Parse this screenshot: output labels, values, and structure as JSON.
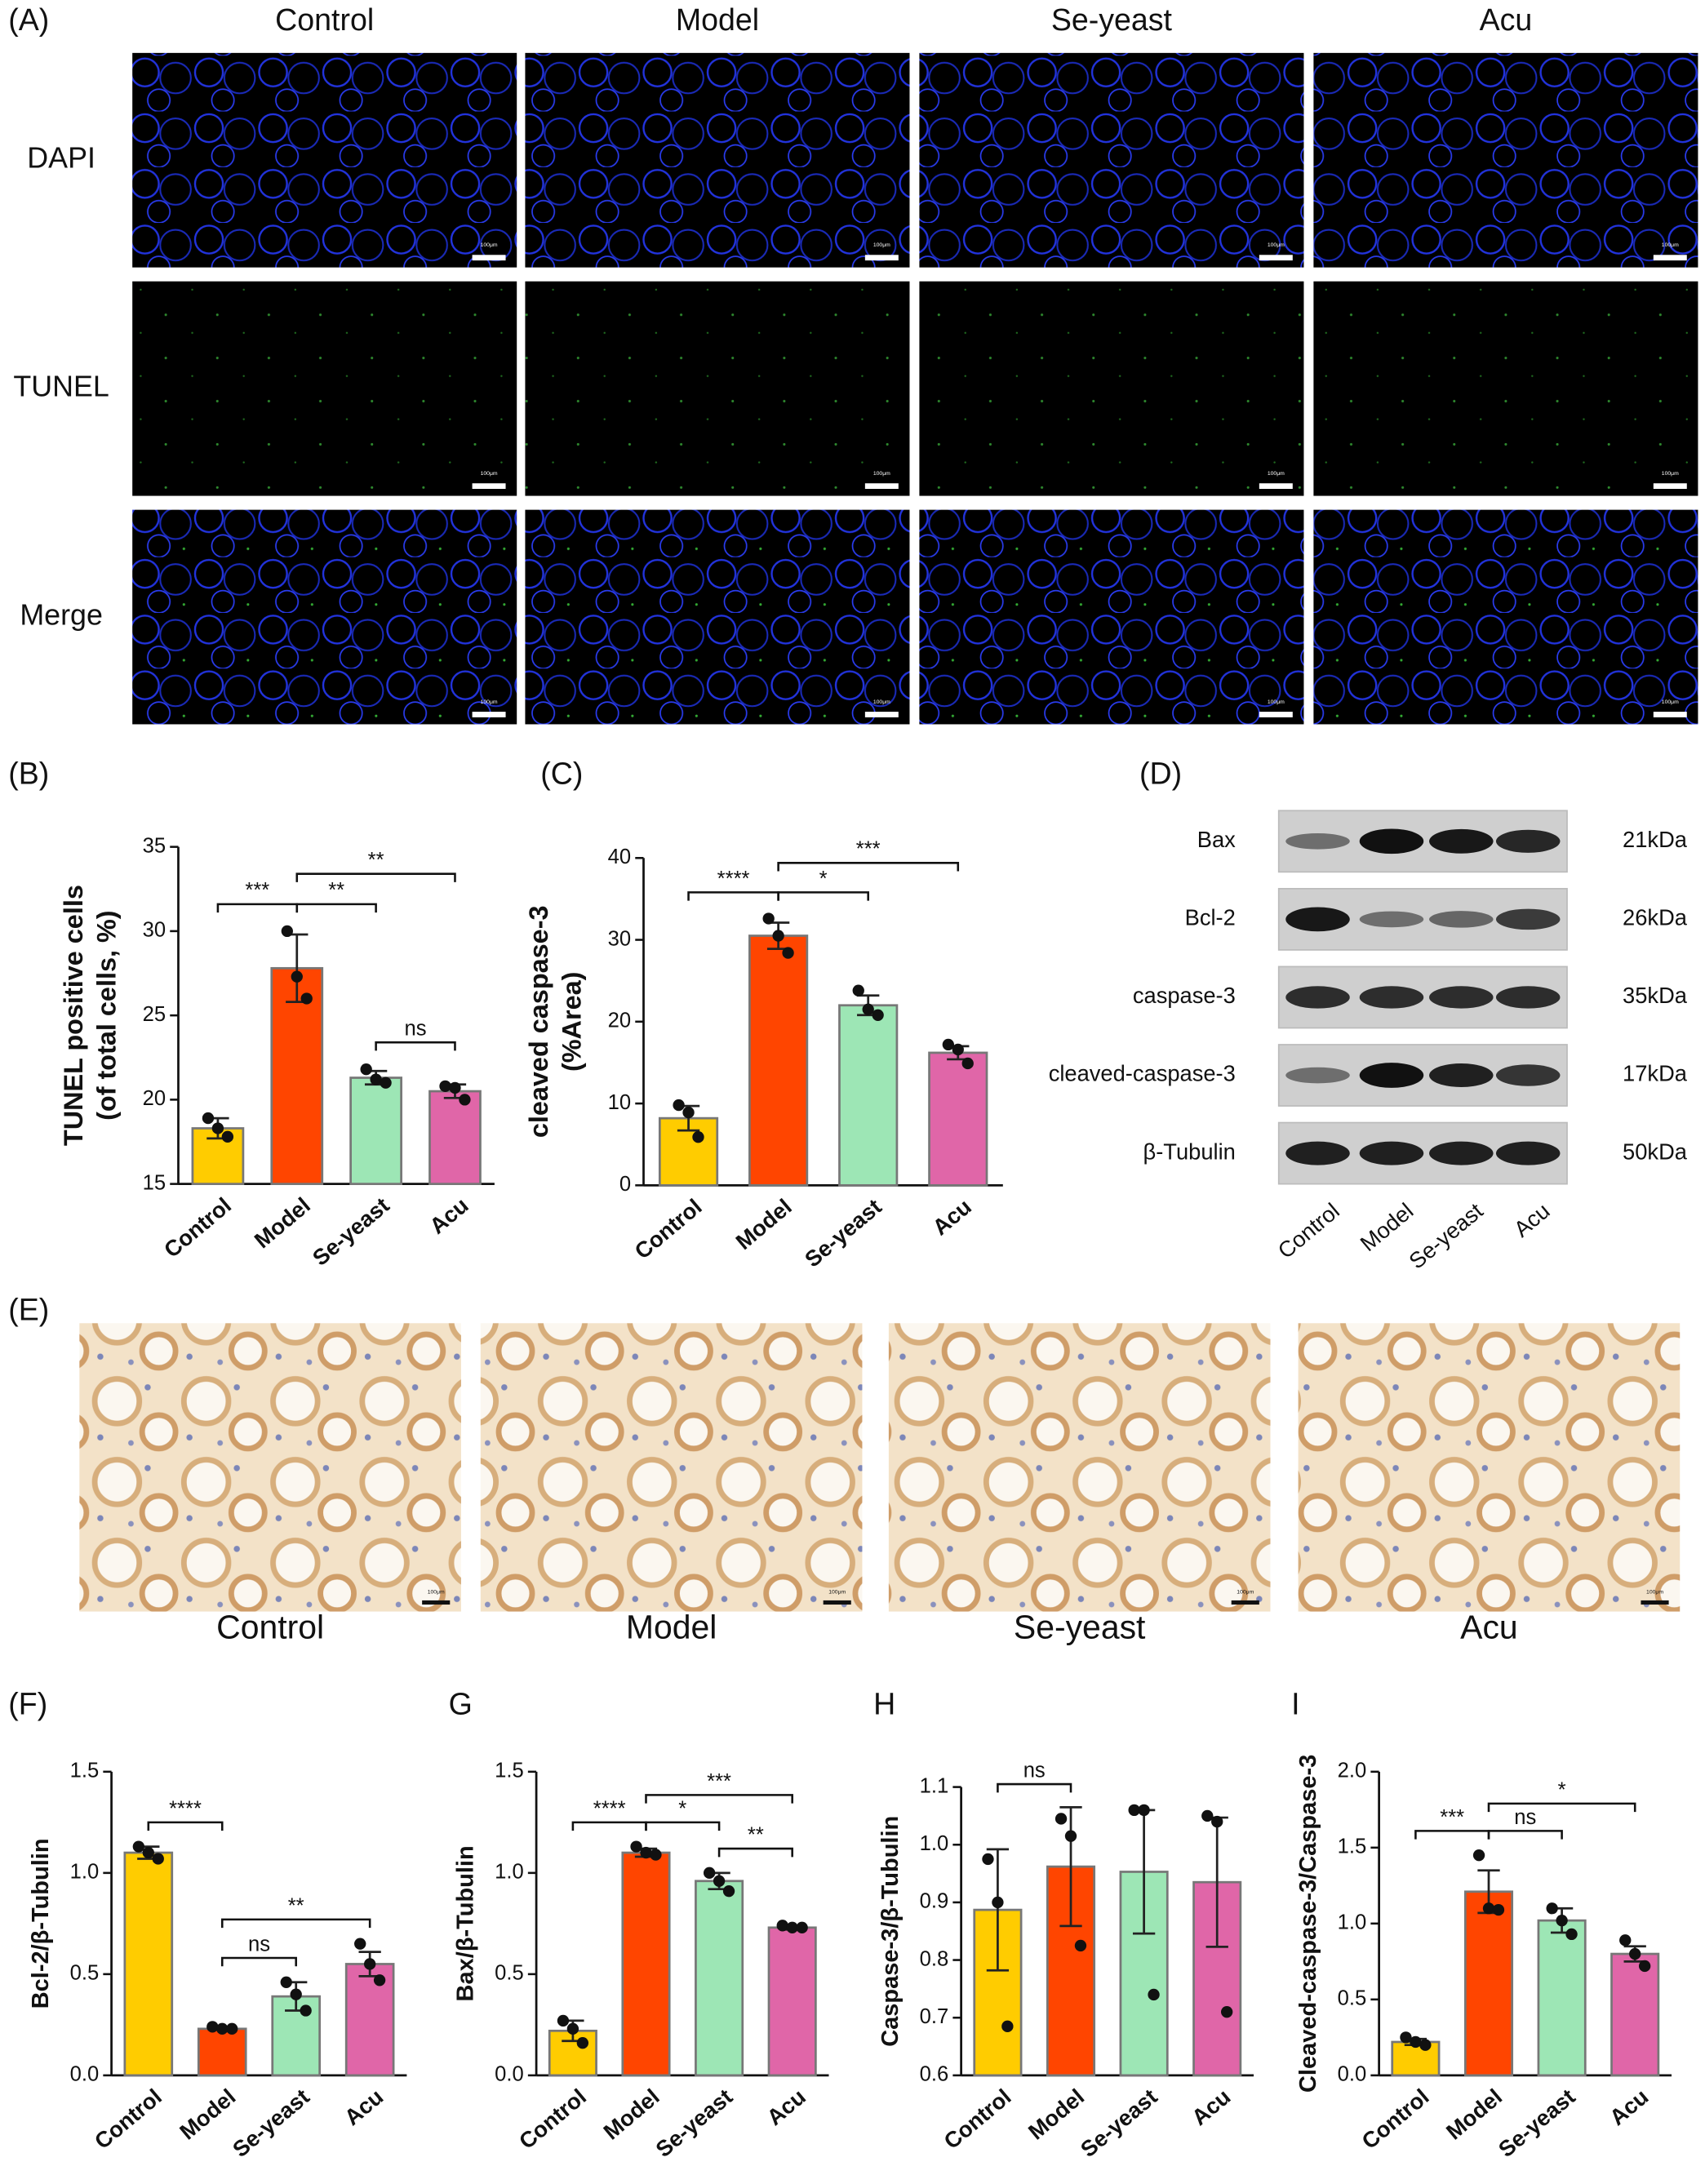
{
  "panel_a": {
    "label": "(A)",
    "columns": [
      "Control",
      "Model",
      "Se-yeast",
      "Acu"
    ],
    "rows": [
      "DAPI",
      "TUNEL",
      "Merge"
    ],
    "scale_bar": "100μm"
  },
  "panel_d": {
    "label": "(D)",
    "bands": [
      {
        "name": "Bax",
        "size": "21kDa"
      },
      {
        "name": "Bcl-2",
        "size": "26kDa"
      },
      {
        "name": "caspase-3",
        "size": "35kDa"
      },
      {
        "name": "cleaved-caspase-3",
        "size": "17kDa"
      },
      {
        "name": "β-Tubulin",
        "size": "50kDa"
      }
    ],
    "lanes": [
      "Control",
      "Model",
      "Se-yeast",
      "Acu"
    ]
  },
  "panel_e": {
    "label": "(E)",
    "columns": [
      "Control",
      "Model",
      "Se-yeast",
      "Acu"
    ],
    "scale_bar": "100μm"
  },
  "chart_data": [
    {
      "type": "bar",
      "title": "(B)",
      "ylabel": [
        "TUNEL positive cells",
        "(of total cells, %)"
      ],
      "categories": [
        "Control",
        "Model",
        "Se-yeast",
        "Acu"
      ],
      "colors": [
        "#ffcc00",
        "#ff4500",
        "#9de6b5",
        "#e066a8"
      ],
      "values": [
        18.3,
        27.8,
        21.3,
        20.5
      ],
      "errors": [
        0.6,
        2.0,
        0.4,
        0.4
      ],
      "points": [
        [
          18.9,
          18.3,
          17.8
        ],
        [
          30.0,
          27.3,
          26.0
        ],
        [
          21.8,
          21.2,
          21.0
        ],
        [
          20.8,
          20.7,
          20.0
        ]
      ],
      "ylim": [
        15,
        35
      ],
      "yticks": [
        15,
        20,
        25,
        30,
        35
      ],
      "comparisons": [
        {
          "from": 0,
          "to": 1,
          "label": "***"
        },
        {
          "from": 1,
          "to": 2,
          "label": "**"
        },
        {
          "from": 2,
          "to": 3,
          "label": "ns"
        },
        {
          "from": 1,
          "to": 3,
          "label": "**"
        }
      ]
    },
    {
      "type": "bar",
      "title": "(C)",
      "ylabel": [
        "cleaved caspase-3",
        "(%Area)"
      ],
      "categories": [
        "Control",
        "Model",
        "Se-yeast",
        "Acu"
      ],
      "colors": [
        "#ffcc00",
        "#ff4500",
        "#9de6b5",
        "#e066a8"
      ],
      "values": [
        8.2,
        30.5,
        22.0,
        16.2
      ],
      "errors": [
        1.5,
        1.6,
        1.2,
        0.8
      ],
      "points": [
        [
          9.8,
          8.9,
          5.9
        ],
        [
          32.6,
          30.5,
          28.4
        ],
        [
          23.8,
          21.5,
          20.8
        ],
        [
          17.2,
          16.6,
          14.9
        ]
      ],
      "ylim": [
        0,
        40
      ],
      "yticks": [
        0,
        10,
        20,
        30,
        40
      ],
      "comparisons": [
        {
          "from": 0,
          "to": 1,
          "label": "****"
        },
        {
          "from": 1,
          "to": 2,
          "label": "*"
        },
        {
          "from": 1,
          "to": 3,
          "label": "***"
        }
      ]
    },
    {
      "type": "bar",
      "title": "(F)",
      "ylabel": [
        "Bcl-2/β-Tubulin"
      ],
      "categories": [
        "Control",
        "Model",
        "Se-yeast",
        "Acu"
      ],
      "colors": [
        "#ffcc00",
        "#ff4500",
        "#9de6b5",
        "#e066a8"
      ],
      "values": [
        1.1,
        0.23,
        0.39,
        0.55
      ],
      "errors": [
        0.03,
        0.005,
        0.07,
        0.06
      ],
      "points": [
        [
          1.13,
          1.1,
          1.07
        ],
        [
          0.24,
          0.23,
          0.23
        ],
        [
          0.46,
          0.4,
          0.32
        ],
        [
          0.65,
          0.55,
          0.47
        ]
      ],
      "ylim": [
        0,
        1.5
      ],
      "yticks": [
        {
          "value": 0,
          "label": "0.0"
        },
        0.5,
        {
          "value": 1,
          "label": "1.0"
        },
        1.5
      ],
      "comparisons": [
        {
          "from": 0,
          "to": 1,
          "label": "****"
        },
        {
          "from": 1,
          "to": 2,
          "label": "ns"
        },
        {
          "from": 1,
          "to": 3,
          "label": "**"
        }
      ]
    },
    {
      "type": "bar",
      "title": "G",
      "ylabel": [
        "Bax/β-Tubulin"
      ],
      "categories": [
        "Control",
        "Model",
        "Se-yeast",
        "Acu"
      ],
      "colors": [
        "#ffcc00",
        "#ff4500",
        "#9de6b5",
        "#e066a8"
      ],
      "values": [
        0.22,
        1.1,
        0.96,
        0.73
      ],
      "errors": [
        0.05,
        0.02,
        0.04,
        0.01
      ],
      "points": [
        [
          0.27,
          0.23,
          0.16
        ],
        [
          1.13,
          1.1,
          1.09
        ],
        [
          1.0,
          0.96,
          0.91
        ],
        [
          0.74,
          0.73,
          0.73
        ]
      ],
      "ylim": [
        0,
        1.5
      ],
      "yticks": [
        {
          "value": 0,
          "label": "0.0"
        },
        0.5,
        {
          "value": 1,
          "label": "1.0"
        },
        1.5
      ],
      "comparisons": [
        {
          "from": 0,
          "to": 1,
          "label": "****"
        },
        {
          "from": 1,
          "to": 2,
          "label": "*"
        },
        {
          "from": 2,
          "to": 3,
          "label": "**"
        },
        {
          "from": 1,
          "to": 3,
          "label": "***"
        }
      ]
    },
    {
      "type": "bar",
      "title": "H",
      "ylabel": [
        "Caspase-3/β-Tubulin"
      ],
      "categories": [
        "Control",
        "Model",
        "Se-yeast",
        "Acu"
      ],
      "colors": [
        "#ffcc00",
        "#ff4500",
        "#9de6b5",
        "#e066a8"
      ],
      "values": [
        0.887,
        0.962,
        0.953,
        0.935
      ],
      "errors": [
        0.105,
        0.103,
        0.107,
        0.112
      ],
      "points": [
        [
          0.975,
          0.9,
          0.685
        ],
        [
          1.045,
          1.015,
          0.825
        ],
        [
          1.06,
          1.06,
          0.74
        ],
        [
          1.05,
          1.04,
          0.71
        ]
      ],
      "ylim": [
        0.6,
        1.1
      ],
      "yticks": [
        0.6,
        0.7,
        0.8,
        0.9,
        {
          "value": 1,
          "label": "1.0"
        },
        1.1
      ],
      "comparisons": [
        {
          "from": 0,
          "to": 1,
          "label": "ns"
        }
      ]
    },
    {
      "type": "bar",
      "title": "I",
      "ylabel": [
        "Cleaved-caspase-3/Caspase-3"
      ],
      "categories": [
        "Control",
        "Model",
        "Se-yeast",
        "Acu"
      ],
      "colors": [
        "#ffcc00",
        "#ff4500",
        "#9de6b5",
        "#e066a8"
      ],
      "values": [
        0.22,
        1.21,
        1.02,
        0.8
      ],
      "errors": [
        0.02,
        0.14,
        0.08,
        0.05
      ],
      "points": [
        [
          0.25,
          0.22,
          0.2
        ],
        [
          1.45,
          1.1,
          1.09
        ],
        [
          1.1,
          1.02,
          0.93
        ],
        [
          0.89,
          0.8,
          0.72
        ]
      ],
      "ylim": [
        0,
        2.0
      ],
      "yticks": [
        {
          "value": 0,
          "label": "0.0"
        },
        0.5,
        {
          "value": 1,
          "label": "1.0"
        },
        1.5,
        {
          "value": 2,
          "label": "2.0"
        }
      ],
      "comparisons": [
        {
          "from": 0,
          "to": 1,
          "label": "***"
        },
        {
          "from": 1,
          "to": 2,
          "label": "ns"
        },
        {
          "from": 1,
          "to": 3,
          "label": "*"
        }
      ]
    }
  ]
}
